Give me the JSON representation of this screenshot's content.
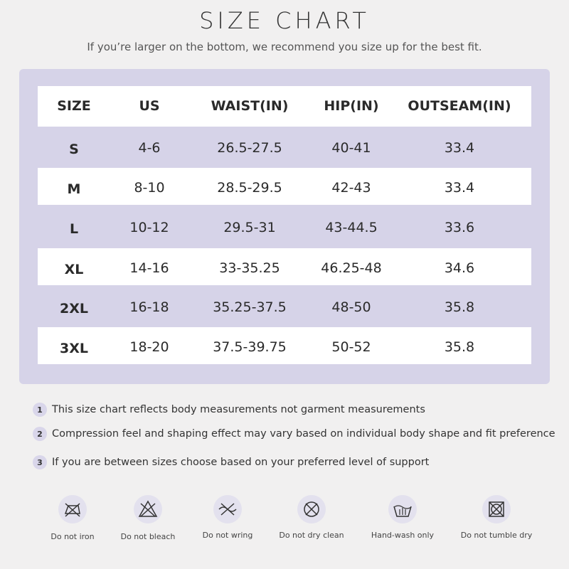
{
  "header": {
    "title": "SIZE CHART",
    "subtitle": "If you’re larger on the bottom, we recommend you size up for the best fit."
  },
  "table": {
    "columns": [
      "SIZE",
      "US",
      "WAIST(IN)",
      "HIP(IN)",
      "OUTSEAM(IN)"
    ],
    "rows": [
      [
        "S",
        "4-6",
        "26.5-27.5",
        "40-41",
        "33.4"
      ],
      [
        "M",
        "8-10",
        "28.5-29.5",
        "42-43",
        "33.4"
      ],
      [
        "L",
        "10-12",
        "29.5-31",
        "43-44.5",
        "33.6"
      ],
      [
        "XL",
        "14-16",
        "33-35.25",
        "46.25-48",
        "34.6"
      ],
      [
        "2XL",
        "16-18",
        "35.25-37.5",
        "48-50",
        "35.8"
      ],
      [
        "3XL",
        "18-20",
        "37.5-39.75",
        "50-52",
        "35.8"
      ]
    ]
  },
  "notes": [
    {
      "number": "1",
      "text": "This size chart reflects body measurements not garment measurements"
    },
    {
      "number": "2",
      "text": "Compression feel and shaping effect may vary based on individual body shape and fit preference"
    },
    {
      "number": "3",
      "text": "If you are between sizes choose based on your preferred level of support"
    }
  ],
  "care": [
    "Do not iron",
    "Do not bleach",
    "Do not wring",
    "Do not dry clean",
    "Hand-wash only",
    "Do not tumble dry"
  ]
}
